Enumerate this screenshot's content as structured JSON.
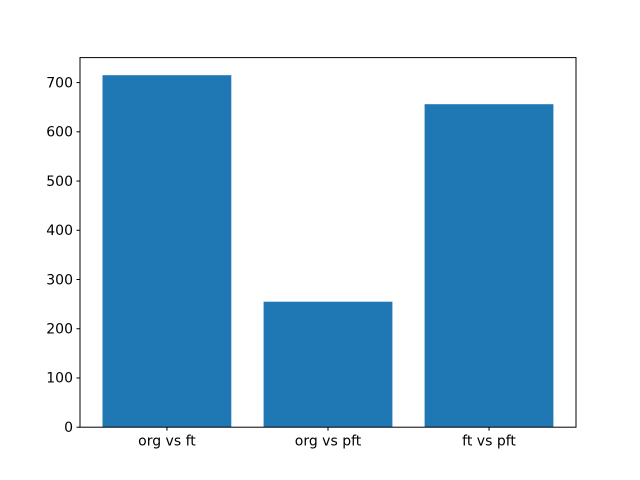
{
  "chart_data": {
    "type": "bar",
    "categories": [
      "org vs ft",
      "org vs pft",
      "ft vs pft"
    ],
    "values": [
      715,
      255,
      656
    ],
    "title": "",
    "xlabel": "",
    "ylabel": "",
    "yticks": [
      0,
      100,
      200,
      300,
      400,
      500,
      600,
      700
    ],
    "ylim": [
      0,
      750.75
    ],
    "xlim": [
      -0.54,
      2.54
    ],
    "bar_width": 0.8,
    "bar_color": "#1f77b4",
    "axis_color": "#000000",
    "background_color": "#ffffff",
    "grid": false,
    "legend": null
  }
}
